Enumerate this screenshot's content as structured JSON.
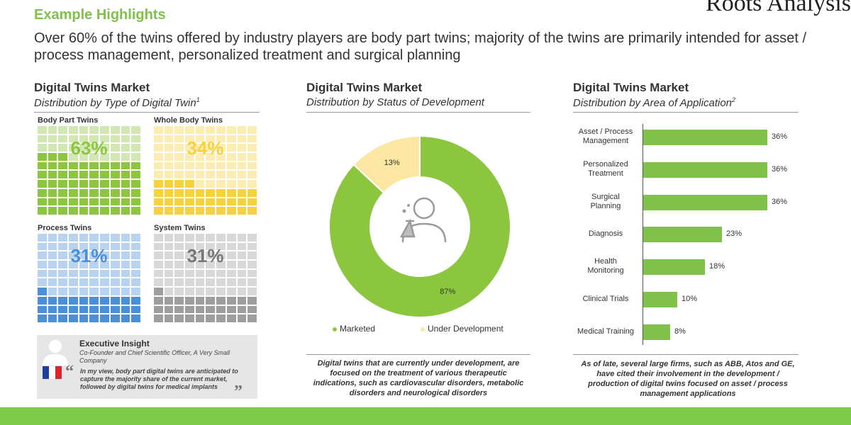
{
  "header": {
    "title": "Example Highlights",
    "brand": "Roots Analysis",
    "headline": "Over 60% of the twins offered by industry players are body part twins; majority of the twins are primarily intended for asset / process management, personalized treatment and surgical planning"
  },
  "colors": {
    "accent": "#7fc14a",
    "bar": "#7fc14a",
    "marketed": "#8cc63f",
    "under_development": "#fbe7a1",
    "body_part": "#8cc63f",
    "whole_body": "#f6d23f",
    "process": "#4a90d9",
    "system": "#9e9e9e"
  },
  "panel1": {
    "title": "Digital Twins Market",
    "subtitle": "Distribution by Type of Digital Twin",
    "footnote_mark": "1"
  },
  "panel2": {
    "title": "Digital Twins Market",
    "subtitle": "Distribution by Status of Development",
    "note": "Digital twins that are currently under development, are focused on the treatment of various therapeutic indications, such as cardiovascular disorders, metabolic disorders and neurological disorders"
  },
  "panel3": {
    "title": "Digital Twins Market",
    "subtitle": "Distribution by Area of Application",
    "footnote_mark": "2",
    "note": "As of late, several large firms, such as ABB, Atos and GE, have cited their involvement in the development / production of digital twins focused on asset / process management applications"
  },
  "insight": {
    "title": "Executive Insight",
    "role": "Co-Founder and Chief Scientific Officer, A Very Small Company",
    "quote": "In my view, body part digital twins are anticipated to capture the majority share of the current market, followed by digital twins for medical implants",
    "flag": "france-flag",
    "avatar_icon": "person-silhouette-icon"
  },
  "chart_data": [
    {
      "type": "waffle",
      "categories": [
        "Body Part Twins",
        "Whole Body Twins",
        "Process Twins",
        "System Twins"
      ],
      "values": [
        63,
        34,
        31,
        31
      ],
      "labels": [
        "63%",
        "34%",
        "31%",
        "31%"
      ]
    },
    {
      "type": "pie",
      "variant": "donut",
      "categories": [
        "Marketed",
        "Under Development"
      ],
      "values": [
        87,
        13
      ],
      "labels": [
        "87%",
        "13%"
      ],
      "legend": "bottom",
      "center_icon": "scientist-icon"
    },
    {
      "type": "bar",
      "orientation": "horizontal",
      "categories": [
        "Asset / Process Management",
        "Personalized Treatment",
        "Surgical Planning",
        "Diagnosis",
        "Health Monitoring",
        "Clinical Trials",
        "Medical Training"
      ],
      "values": [
        36,
        36,
        36,
        23,
        18,
        10,
        8
      ],
      "labels": [
        "36%",
        "36%",
        "36%",
        "23%",
        "18%",
        "10%",
        "8%"
      ],
      "xlim": [
        0,
        40
      ]
    }
  ]
}
